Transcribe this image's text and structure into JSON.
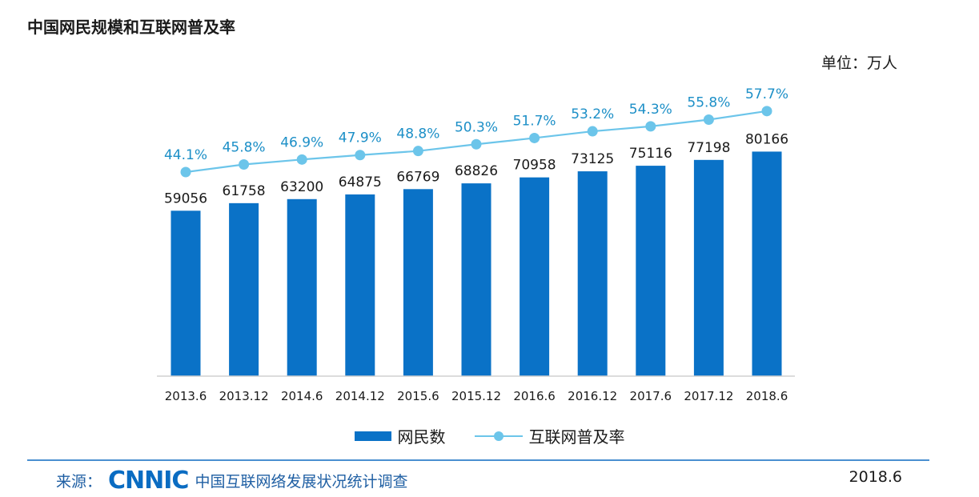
{
  "header": {
    "title": "中国网民规模和互联网普及率",
    "unit": "单位：万人"
  },
  "chart_data": {
    "type": "bar",
    "categories": [
      "2013.6",
      "2013.12",
      "2014.6",
      "2014.12",
      "2015.6",
      "2015.12",
      "2016.6",
      "2016.12",
      "2017.6",
      "2017.12",
      "2018.6"
    ],
    "series": [
      {
        "name": "网民数",
        "type": "bar",
        "values": [
          59056,
          61758,
          63200,
          64875,
          66769,
          68826,
          70958,
          73125,
          75116,
          77198,
          80166
        ],
        "labels": [
          "59056",
          "61758",
          "63200",
          "64875",
          "66769",
          "68826",
          "70958",
          "73125",
          "75116",
          "77198",
          "80166"
        ],
        "color": "#0a72c7"
      },
      {
        "name": "互联网普及率",
        "type": "line",
        "values": [
          44.1,
          45.8,
          46.9,
          47.9,
          48.8,
          50.3,
          51.7,
          53.2,
          54.3,
          55.8,
          57.7
        ],
        "labels": [
          "44.1%",
          "45.8%",
          "46.9%",
          "47.9%",
          "48.8%",
          "50.3%",
          "51.7%",
          "53.2%",
          "54.3%",
          "55.8%",
          "57.7%"
        ],
        "color": "#6cc5ea"
      }
    ],
    "legend": "bottom-center",
    "grid": false
  },
  "footer": {
    "source_label": "来源：",
    "logo_text": "CNNIC",
    "source_name": "中国互联网络发展状况统计调查",
    "date": "2018.6"
  },
  "colors": {
    "bar": "#0a72c7",
    "line": "#6cc5ea",
    "line_label": "#1c8fc7",
    "footer_text": "#1f5fa3"
  }
}
